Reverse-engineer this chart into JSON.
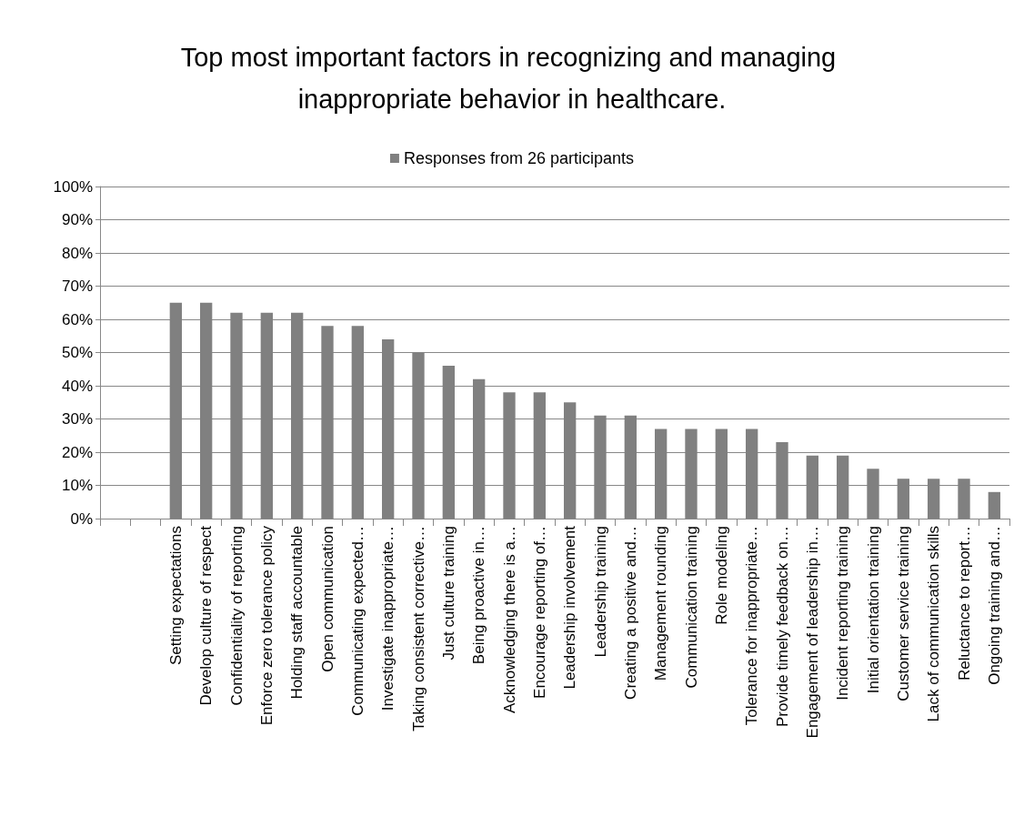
{
  "chart_data": {
    "type": "bar",
    "title": "Top most important factors in recognizing and managing inappropriate behavior in healthcare.",
    "categories": [
      null,
      null,
      "Setting expectations",
      "Develop culture of respect",
      "Confidentiality of reporting",
      "Enforce zero tolerance policy",
      "Holding staff accountable",
      "Open communication",
      "Communicating expected…",
      "Investigate inappropriate…",
      "Taking consistent corrective…",
      "Just culture training",
      "Being proactive in…",
      "Acknowledging there is a…",
      "Encourage reporting of…",
      "Leadership involvement",
      "Leadership training",
      "Creating a positive and…",
      "Management rounding",
      "Communication training",
      "Role modeling",
      "Tolerance for inappropriate…",
      "Provide timely feedback on…",
      "Engagement of leadership in…",
      "Incident reporting training",
      "Initial orientation training",
      "Customer service training",
      "Lack of communication skills",
      "Reluctance to report…",
      "Ongoing training and…"
    ],
    "series": [
      {
        "name": "Responses from 26 participants",
        "color": "#808080",
        "values": [
          null,
          null,
          65,
          65,
          62,
          62,
          62,
          58,
          58,
          54,
          50,
          46,
          42,
          38,
          38,
          35,
          31,
          31,
          27,
          27,
          27,
          27,
          23,
          19,
          19,
          15,
          12,
          12,
          12,
          8
        ]
      }
    ],
    "ylim": [
      0,
      100
    ],
    "yticks": [
      {
        "value": 0,
        "label": "0%"
      },
      {
        "value": 10,
        "label": "10%"
      },
      {
        "value": 20,
        "label": "20%"
      },
      {
        "value": 30,
        "label": "30%"
      },
      {
        "value": 40,
        "label": "40%"
      },
      {
        "value": 50,
        "label": "50%"
      },
      {
        "value": 60,
        "label": "60%"
      },
      {
        "value": 70,
        "label": "70%"
      },
      {
        "value": 80,
        "label": "80%"
      },
      {
        "value": 90,
        "label": "90%"
      },
      {
        "value": 100,
        "label": "100%"
      }
    ],
    "grid": "y",
    "legend": "top"
  }
}
